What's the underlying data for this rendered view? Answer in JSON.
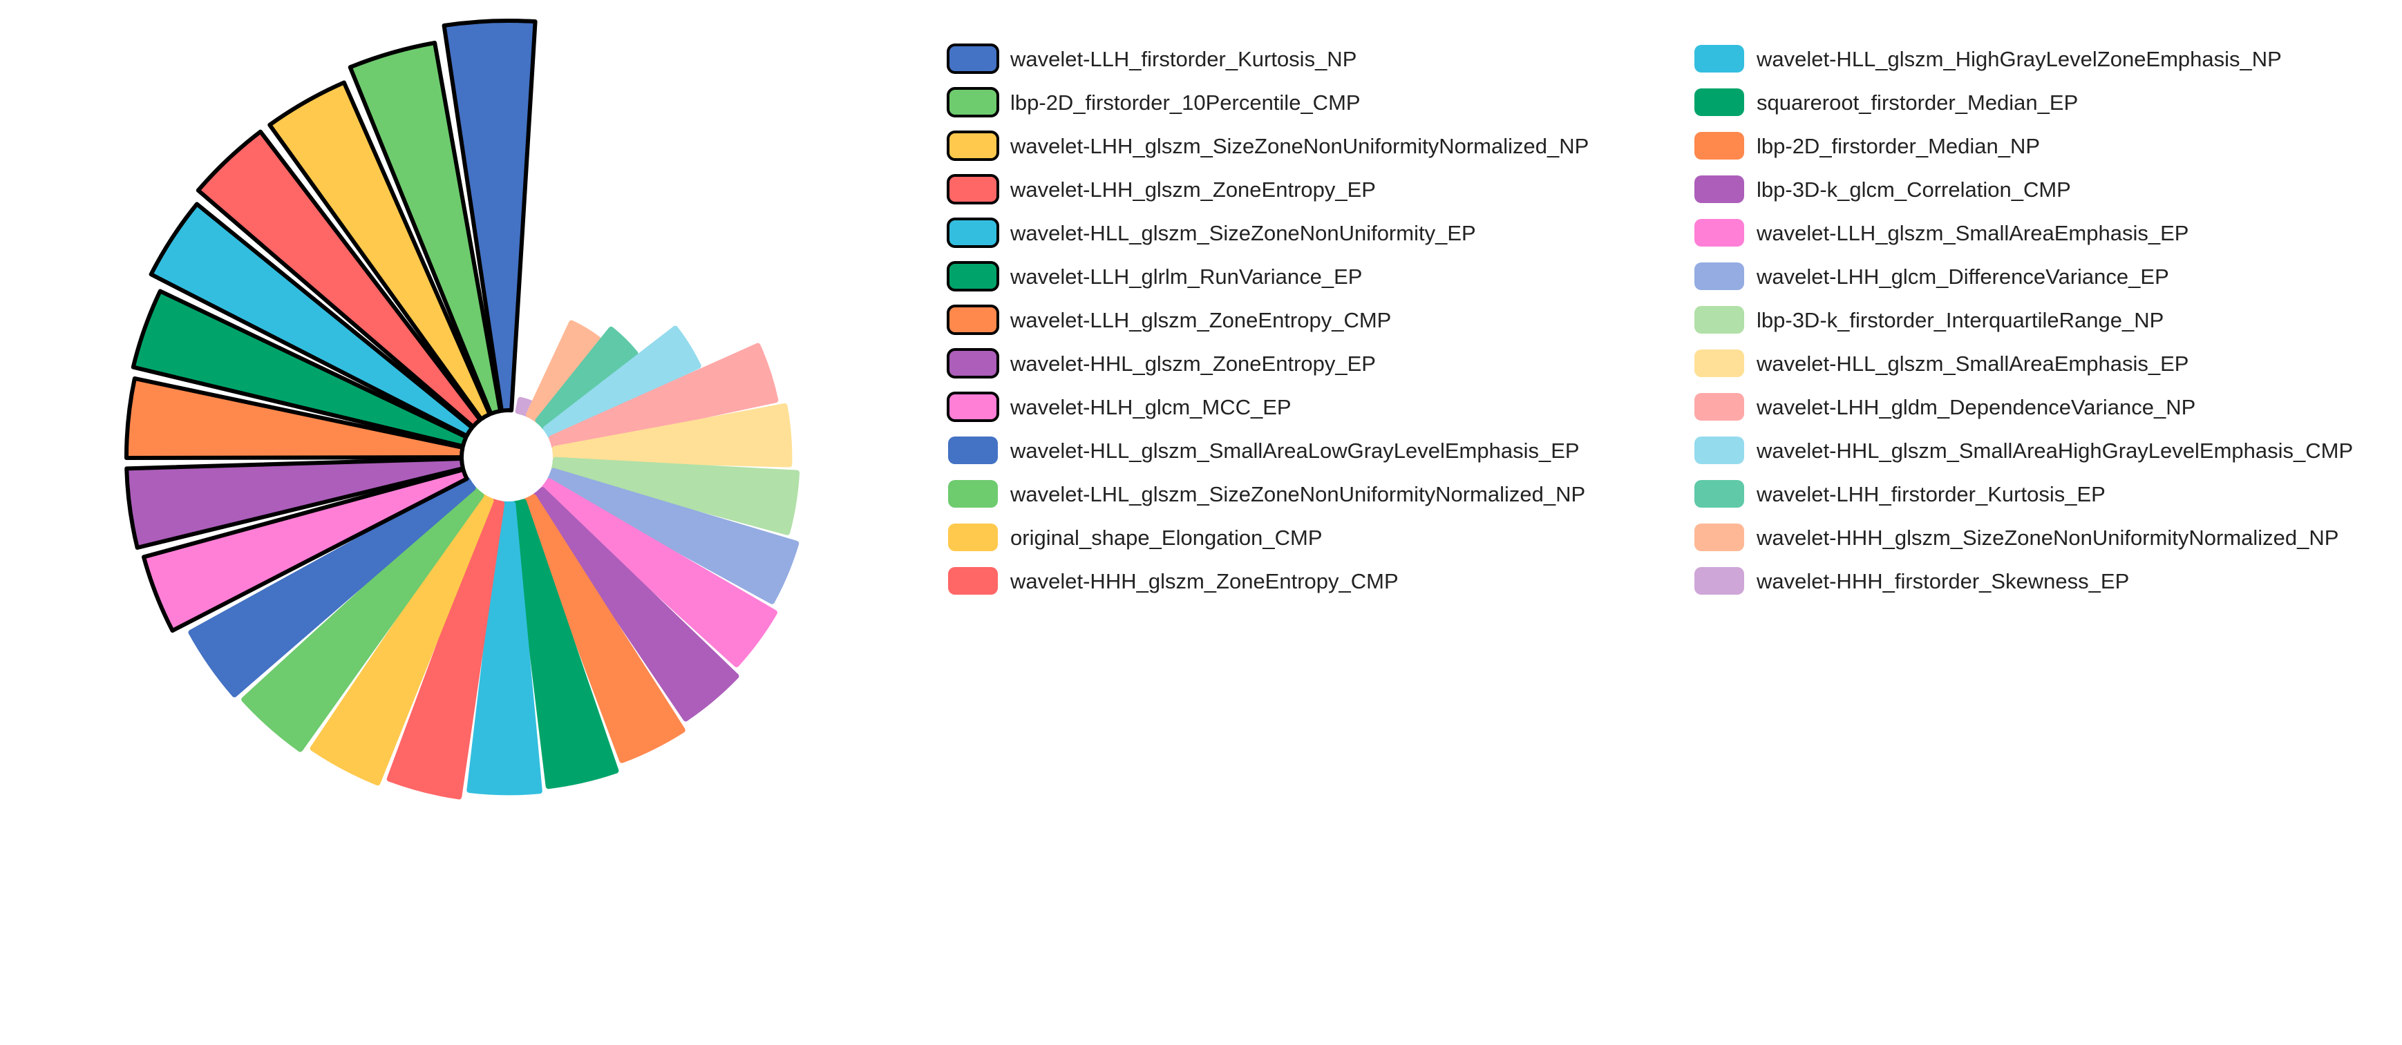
{
  "chart_data": {
    "type": "radial-bar",
    "title": "",
    "legend_placement": "right",
    "grid": false,
    "value_range": [
      0,
      1
    ],
    "items": [
      {
        "label": "wavelet-LLH_firstorder_Kurtosis_NP",
        "value": 1.0,
        "color": "#4472C4",
        "outlined": true
      },
      {
        "label": "lbp-2D_firstorder_10Percentile_CMP",
        "value": 0.96,
        "color": "#6ECB6E",
        "outlined": true
      },
      {
        "label": "wavelet-LHH_glszm_SizeZoneNonUniformityNormalized_NP",
        "value": 0.93,
        "color": "#FFC94D",
        "outlined": true
      },
      {
        "label": "wavelet-LHH_glszm_ZoneEntropy_EP",
        "value": 0.93,
        "color": "#FF6666",
        "outlined": true
      },
      {
        "label": "wavelet-HLL_glszm_SizeZoneNonUniformity_EP",
        "value": 0.91,
        "color": "#33BEDF",
        "outlined": true
      },
      {
        "label": "wavelet-LLH_glrlm_RunVariance_EP",
        "value": 0.87,
        "color": "#00A46A",
        "outlined": true
      },
      {
        "label": "wavelet-LLH_glszm_ZoneEntropy_CMP",
        "value": 0.86,
        "color": "#FF884D",
        "outlined": true
      },
      {
        "label": "wavelet-HHL_glszm_ZoneEntropy_EP",
        "value": 0.86,
        "color": "#AC5EBA",
        "outlined": true
      },
      {
        "label": "wavelet-HLH_glcm_MCC_EP",
        "value": 0.85,
        "color": "#FF7FD6",
        "outlined": true
      },
      {
        "label": "wavelet-HLL_glszm_SmallAreaLowGrayLevelEmphasis_EP",
        "value": 0.81,
        "color": "#4472C4",
        "outlined": false
      },
      {
        "label": "wavelet-LHL_glszm_SizeZoneNonUniformityNormalized_NP",
        "value": 0.8,
        "color": "#6ECB6E",
        "outlined": false
      },
      {
        "label": "original_shape_Elongation_CMP",
        "value": 0.78,
        "color": "#FFC94D",
        "outlined": false
      },
      {
        "label": "wavelet-HHH_glszm_ZoneEntropy_CMP",
        "value": 0.76,
        "color": "#FF6666",
        "outlined": false
      },
      {
        "label": "wavelet-HLL_glszm_HighGrayLevelZoneEmphasis_NP",
        "value": 0.74,
        "color": "#33BEDF",
        "outlined": false
      },
      {
        "label": "squareroot_firstorder_Median_EP",
        "value": 0.73,
        "color": "#00A46A",
        "outlined": false
      },
      {
        "label": "lbp-2D_firstorder_Median_NP",
        "value": 0.71,
        "color": "#FF884D",
        "outlined": false
      },
      {
        "label": "lbp-3D-k_glcm_Correlation_CMP",
        "value": 0.69,
        "color": "#AC5EBA",
        "outlined": false
      },
      {
        "label": "wavelet-LLH_glszm_SmallAreaEmphasis_EP",
        "value": 0.67,
        "color": "#FF7FD6",
        "outlined": false
      },
      {
        "label": "wavelet-LHH_glcm_DifferenceVariance_EP",
        "value": 0.65,
        "color": "#94ACE1",
        "outlined": false
      },
      {
        "label": "lbp-3D-k_firstorder_InterquartileRange_NP",
        "value": 0.62,
        "color": "#B1E0A8",
        "outlined": false
      },
      {
        "label": "wavelet-HLL_glszm_SmallAreaEmphasis_EP",
        "value": 0.6,
        "color": "#FFE096",
        "outlined": false
      },
      {
        "label": "wavelet-LHH_gldm_DependenceVariance_NP",
        "value": 0.58,
        "color": "#FFA8A8",
        "outlined": false
      },
      {
        "label": "wavelet-HHL_glszm_SmallAreaHighGrayLevelEmphasis_CMP",
        "value": 0.42,
        "color": "#94DBED",
        "outlined": false
      },
      {
        "label": "wavelet-LHH_firstorder_Kurtosis_EP",
        "value": 0.3,
        "color": "#5FC9A8",
        "outlined": false
      },
      {
        "label": "wavelet-HHH_glszm_SizeZoneNonUniformityNormalized_NP",
        "value": 0.26,
        "color": "#FFB896",
        "outlined": false
      },
      {
        "label": "wavelet-HHH_firstorder_Skewness_EP",
        "value": 0.03,
        "color": "#CFA6D8",
        "outlined": false
      }
    ]
  }
}
